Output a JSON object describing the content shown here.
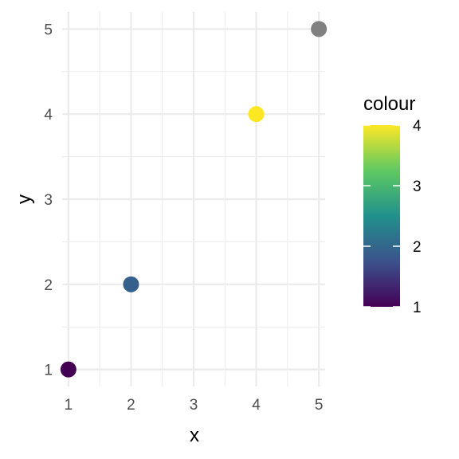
{
  "chart_data": {
    "type": "scatter",
    "xlabel": "x",
    "ylabel": "y",
    "xlim": [
      0.9,
      5.1
    ],
    "ylim": [
      0.8,
      5.2
    ],
    "x_ticks": [
      1,
      2,
      3,
      4,
      5
    ],
    "y_ticks": [
      1,
      2,
      3,
      4,
      5
    ],
    "grid": true,
    "points": [
      {
        "x": 1,
        "y": 1,
        "colour": 1,
        "color": "#440154"
      },
      {
        "x": 2,
        "y": 2,
        "colour": 2,
        "color": "#35608d"
      },
      {
        "x": 4,
        "y": 4,
        "colour": 4,
        "color": "#fde725"
      },
      {
        "x": 5,
        "y": 5,
        "colour": null,
        "color": "#808080"
      }
    ],
    "legend": {
      "title": "colour",
      "placement": "right",
      "range": [
        1,
        4
      ],
      "labels": [
        "1",
        "2",
        "3",
        "4"
      ],
      "colors": [
        "#440154",
        "#3b528b",
        "#21918c",
        "#5ec962",
        "#fde725"
      ]
    }
  }
}
